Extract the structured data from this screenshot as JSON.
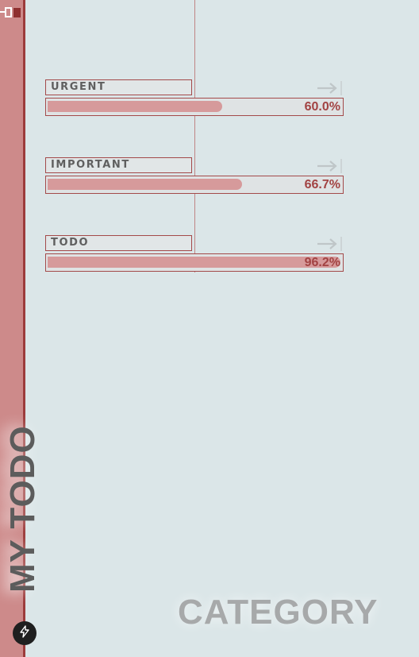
{
  "sidebar": {
    "title": "MY TODO"
  },
  "categories": [
    {
      "label": "URGENT",
      "progress_text": "60.0%",
      "progress": 0.6
    },
    {
      "label": "IMPORTANT",
      "progress_text": "66.7%",
      "progress": 0.667
    },
    {
      "label": "TODO",
      "progress_text": "96.2%",
      "progress": 0.962
    }
  ],
  "footer": {
    "title": "CATEGORY"
  },
  "colors": {
    "sidebar": "#cd8a8a",
    "accent": "#9c3b3b",
    "background": "#dbe6e8"
  },
  "icons": [
    "corner-icon",
    "arrow-right-icon",
    "bolt-icon"
  ]
}
